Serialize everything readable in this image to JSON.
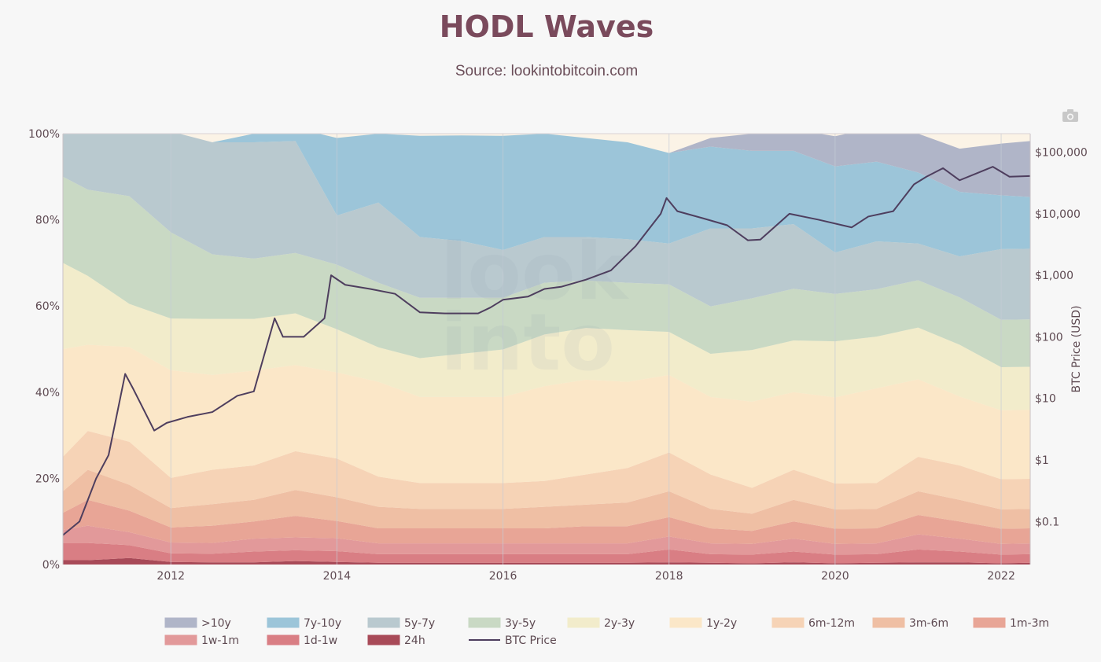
{
  "page": {
    "title": "HODL Waves",
    "subtitle": "Source: lookintobitcoin.com",
    "camera_icon": "camera-icon"
  },
  "chart_data": {
    "type": "area",
    "stacked": true,
    "title": "HODL Waves",
    "subtitle": "Source: lookintobitcoin.com",
    "x_range": [
      2010.7,
      2022.35
    ],
    "x_ticks": [
      "2012",
      "2014",
      "2016",
      "2018",
      "2020",
      "2022"
    ],
    "y_range": [
      0,
      100
    ],
    "y_ticks": [
      "0%",
      "20%",
      "40%",
      "60%",
      "80%",
      "100%"
    ],
    "y2_label": "BTC Price (USD)",
    "y2_scale": "log",
    "y2_range": [
      0.02,
      200000
    ],
    "y2_ticks": [
      "$0.1",
      "$1",
      "$10",
      "$100",
      "$1,000",
      "$10,000",
      "$100,000"
    ],
    "grid": true,
    "legend_position": "bottom",
    "x": [
      2010.7,
      2011.0,
      2011.5,
      2012.0,
      2012.5,
      2013.0,
      2013.5,
      2014.0,
      2014.5,
      2015.0,
      2015.5,
      2016.0,
      2016.5,
      2017.0,
      2017.5,
      2018.0,
      2018.5,
      2019.0,
      2019.5,
      2020.0,
      2020.5,
      2021.0,
      2021.5,
      2022.0,
      2022.35
    ],
    "series": [
      {
        "name": "24h",
        "color": "#a84a58",
        "values": [
          1,
          1,
          1.5,
          0.6,
          0.5,
          0.5,
          0.8,
          0.6,
          0.4,
          0.4,
          0.4,
          0.4,
          0.4,
          0.4,
          0.4,
          0.5,
          0.4,
          0.3,
          0.5,
          0.3,
          0.4,
          0.5,
          0.5,
          0.3,
          0.4
        ]
      },
      {
        "name": "1d-1w",
        "color": "#d97e84",
        "values": [
          4,
          4,
          3,
          2,
          2,
          2.5,
          2.5,
          2.5,
          2,
          2,
          2,
          2,
          2,
          2,
          2,
          3,
          2,
          2,
          2.5,
          2,
          2,
          3,
          2.5,
          2,
          2
        ]
      },
      {
        "name": "1w-1m",
        "color": "#e2999a",
        "values": [
          3,
          4,
          3,
          2.5,
          2.5,
          3,
          3,
          3,
          2.5,
          2.5,
          2.5,
          2.5,
          2.5,
          2.5,
          2.5,
          3,
          2.5,
          2.5,
          3,
          2.5,
          2.5,
          3.5,
          3,
          2.5,
          2.5
        ]
      },
      {
        "name": "1m-3m",
        "color": "#e8a596",
        "values": [
          4,
          6,
          5,
          3.5,
          4,
          4,
          5,
          4,
          3.5,
          3.5,
          3.5,
          3.5,
          3.5,
          4,
          4,
          4.5,
          3.5,
          3,
          4,
          3.5,
          3.5,
          4.5,
          4,
          3.5,
          3.5
        ]
      },
      {
        "name": "3m-6m",
        "color": "#efbfa4",
        "values": [
          5,
          7,
          6,
          4.5,
          5,
          5,
          6,
          5.5,
          5,
          4.5,
          4.5,
          4.5,
          5,
          5,
          5.5,
          6,
          4.5,
          4,
          5,
          4.5,
          4.5,
          5.5,
          5,
          4.5,
          4.5
        ]
      },
      {
        "name": "6m-12m",
        "color": "#f6d3b6",
        "values": [
          8,
          9,
          10,
          7,
          8,
          8,
          9,
          9,
          7,
          6,
          6,
          6,
          6,
          7,
          8,
          9,
          8,
          6,
          7,
          6,
          6,
          8,
          8,
          7,
          7
        ]
      },
      {
        "name": "1y-2y",
        "color": "#fbe7c8",
        "values": [
          25,
          20,
          22,
          25,
          22,
          22,
          20,
          20,
          22,
          20,
          20,
          20,
          22,
          22,
          20,
          18,
          18,
          20,
          18,
          20,
          22,
          18,
          16,
          16,
          16
        ]
      },
      {
        "name": "2y-3y",
        "color": "#f2eccb",
        "values": [
          20,
          16,
          10,
          12,
          13,
          12,
          12,
          10,
          8,
          9,
          10,
          11,
          12,
          12,
          12,
          10,
          10,
          12,
          12,
          13,
          12,
          12,
          12,
          10,
          10
        ]
      },
      {
        "name": "3y-5y",
        "color": "#c9d9c4",
        "values": [
          20,
          20,
          25,
          20,
          15,
          14,
          14,
          15,
          15,
          14,
          13,
          12,
          12,
          11,
          11,
          11,
          11,
          12,
          12,
          11,
          11,
          11,
          11,
          11,
          11
        ]
      },
      {
        "name": "5y-7y",
        "color": "#b9c9cf",
        "values": [
          10,
          13,
          15.5,
          23.4,
          26,
          27,
          26,
          11.4,
          18.6,
          14.1,
          13.2,
          11.1,
          10.6,
          10.1,
          10.1,
          9.5,
          18.1,
          16.2,
          15,
          9.6,
          11.1,
          8.5,
          9.5,
          16.4,
          16.4
        ]
      },
      {
        "name": "7y-10y",
        "color": "#9cc5d9",
        "values": [
          0,
          0,
          0,
          0,
          0,
          2,
          3,
          18,
          16,
          23.5,
          24.5,
          26.5,
          24,
          23,
          22.5,
          21,
          19,
          18,
          17,
          20,
          18.5,
          16.5,
          15,
          12.5,
          12
        ]
      },
      {
        "name": ">10y",
        "color": "#b0b5c8",
        "values": [
          0,
          0,
          0,
          0,
          0,
          0,
          0,
          0,
          0,
          0,
          0,
          0,
          0,
          0,
          0,
          0,
          2,
          4,
          5,
          7,
          8,
          9,
          10,
          12,
          13
        ]
      },
      {
        "name": "BTC Price",
        "color": "#4e3e5e",
        "type": "line",
        "axis": "y2",
        "x": [
          2010.7,
          2010.9,
          2011.1,
          2011.25,
          2011.45,
          2011.55,
          2011.8,
          2011.95,
          2012.2,
          2012.5,
          2012.8,
          2013.0,
          2013.25,
          2013.35,
          2013.6,
          2013.85,
          2013.93,
          2014.1,
          2014.4,
          2014.7,
          2015.0,
          2015.3,
          2015.7,
          2015.85,
          2016.0,
          2016.3,
          2016.5,
          2016.7,
          2017.0,
          2017.3,
          2017.6,
          2017.9,
          2017.97,
          2018.1,
          2018.4,
          2018.7,
          2018.95,
          2019.1,
          2019.45,
          2019.8,
          2020.2,
          2020.4,
          2020.7,
          2020.95,
          2021.1,
          2021.3,
          2021.5,
          2021.7,
          2021.9,
          2022.1,
          2022.35
        ],
        "values": [
          0.06,
          0.1,
          0.5,
          1.2,
          25,
          14,
          3,
          4,
          5,
          6,
          11,
          13,
          200,
          100,
          100,
          200,
          1000,
          700,
          600,
          500,
          250,
          240,
          240,
          300,
          400,
          450,
          600,
          650,
          850,
          1200,
          3000,
          10000,
          18000,
          11000,
          8500,
          6500,
          3700,
          3800,
          10000,
          8000,
          6000,
          9000,
          11000,
          30000,
          40000,
          55000,
          35000,
          45000,
          58000,
          40000,
          41000
        ]
      }
    ],
    "legend": [
      ">10y",
      "7y-10y",
      "5y-7y",
      "3y-5y",
      "2y-3y",
      "1y-2y",
      "6m-12m",
      "3m-6m",
      "1m-3m",
      "1w-1m",
      "1d-1w",
      "24h",
      "BTC Price"
    ],
    "legend_colors": [
      "#b0b5c8",
      "#9cc5d9",
      "#b9c9cf",
      "#c9d9c4",
      "#f2eccb",
      "#fbe7c8",
      "#f6d3b6",
      "#efbfa4",
      "#e8a596",
      "#e2999a",
      "#d97e84",
      "#a84a58",
      "#4e3e5e"
    ]
  }
}
